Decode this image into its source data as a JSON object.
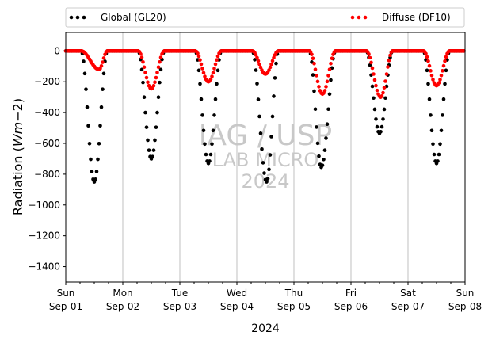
{
  "chart_data": {
    "type": "scatter",
    "xlabel": "2024",
    "ylabel": "Radiation (Wm−2)",
    "ylabel_parts": {
      "main": "Radiation (",
      "italic": "Wm",
      "tail": "−2)"
    },
    "ylim": [
      -1500,
      120
    ],
    "yticks": [
      0,
      -200,
      -400,
      -600,
      -800,
      -1000,
      -1200,
      -1400
    ],
    "xlim": [
      "2024-09-01 00:00",
      "2024-09-08 00:00"
    ],
    "xticks": [
      {
        "day": "Sun",
        "date": "Sep-01"
      },
      {
        "day": "Mon",
        "date": "Sep-02"
      },
      {
        "day": "Tue",
        "date": "Sep-03"
      },
      {
        "day": "Wed",
        "date": "Sep-04"
      },
      {
        "day": "Thu",
        "date": "Sep-05"
      },
      {
        "day": "Fri",
        "date": "Sep-06"
      },
      {
        "day": "Sat",
        "date": "Sep-07"
      },
      {
        "day": "Sun",
        "date": "Sep-08"
      }
    ],
    "grid": "vertical at day boundaries",
    "legend_placement": "top, above plot",
    "watermark": [
      "IAG / USP",
      "LAB MICRO",
      "2024"
    ],
    "sampling": "every 30 minutes, hour of day",
    "series": [
      {
        "name": "Global (GL20)",
        "color": "#000000",
        "days": [
          {
            "sunrise": 6.5,
            "sunset": 17.5,
            "peak": -850,
            "noon": 12.0
          },
          {
            "sunrise": 6.5,
            "sunset": 17.5,
            "peak": -700,
            "noon": 12.0
          },
          {
            "sunrise": 6.5,
            "sunset": 17.5,
            "peak": -730,
            "noon": 12.0
          },
          {
            "sunrise": 6.5,
            "sunset": 17.5,
            "peak": -850,
            "noon": 12.5
          },
          {
            "sunrise": 6.5,
            "sunset": 17.5,
            "peak": -755,
            "noon": 11.5
          },
          {
            "sunrise": 6.5,
            "sunset": 17.5,
            "peak": -535,
            "noon": 12.0
          },
          {
            "sunrise": 6.5,
            "sunset": 17.5,
            "peak": -730,
            "noon": 12.0
          }
        ]
      },
      {
        "name": "Diffuse (DF10)",
        "color": "#ff0000",
        "days": [
          {
            "sunrise": 6.5,
            "sunset": 17.5,
            "peak": -120,
            "noon": 14.0
          },
          {
            "sunrise": 6.5,
            "sunset": 17.5,
            "peak": -245,
            "noon": 12.0
          },
          {
            "sunrise": 6.5,
            "sunset": 17.5,
            "peak": -200,
            "noon": 12.0
          },
          {
            "sunrise": 6.5,
            "sunset": 17.5,
            "peak": -150,
            "noon": 12.0
          },
          {
            "sunrise": 6.5,
            "sunset": 17.5,
            "peak": -280,
            "noon": 12.0
          },
          {
            "sunrise": 6.5,
            "sunset": 17.5,
            "peak": -300,
            "noon": 12.5
          },
          {
            "sunrise": 6.5,
            "sunset": 17.5,
            "peak": -225,
            "noon": 12.0
          }
        ]
      }
    ]
  }
}
